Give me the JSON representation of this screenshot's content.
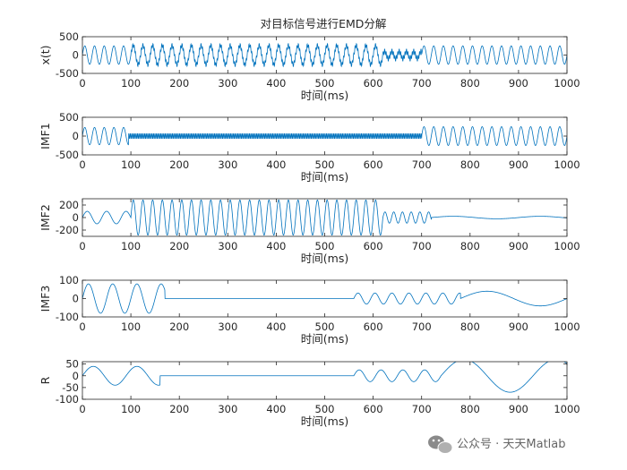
{
  "chart_data": [
    {
      "type": "line",
      "title": "对目标信号进行EMD分解",
      "xlabel": "时间(ms)",
      "ylabel": "x(t)",
      "xlim": [
        0,
        1000
      ],
      "ylim": [
        -500,
        500
      ],
      "xticks": [
        "0",
        "100",
        "200",
        "300",
        "400",
        "500",
        "600",
        "700",
        "800",
        "900",
        "1000"
      ],
      "yticks": [
        "500",
        "0",
        "-500"
      ],
      "series": [
        {
          "segments": [
            {
              "x_start": 0,
              "x_end": 100,
              "components": [
                {
                  "amplitude": 250,
                  "period_ms": 20
                }
              ]
            },
            {
              "x_start": 100,
              "x_end": 620,
              "components": [
                {
                  "amplitude": 260,
                  "period_ms": 20
                },
                {
                  "amplitude": 60,
                  "period_ms": 3
                }
              ]
            },
            {
              "x_start": 620,
              "x_end": 700,
              "components": [
                {
                  "amplitude": 100,
                  "period_ms": 15
                },
                {
                  "amplitude": 70,
                  "period_ms": 3
                }
              ]
            },
            {
              "x_start": 700,
              "x_end": 1000,
              "components": [
                {
                  "amplitude": 250,
                  "period_ms": 20
                }
              ]
            }
          ]
        }
      ]
    },
    {
      "type": "line",
      "title": "",
      "xlabel": "时间(ms)",
      "ylabel": "IMF1",
      "xlim": [
        0,
        1000
      ],
      "ylim": [
        -500,
        500
      ],
      "xticks": [
        "0",
        "100",
        "200",
        "300",
        "400",
        "500",
        "600",
        "700",
        "800",
        "900",
        "1000"
      ],
      "yticks": [
        "500",
        "0",
        "-500"
      ],
      "series": [
        {
          "segments": [
            {
              "x_start": 0,
              "x_end": 95,
              "components": [
                {
                  "amplitude": 230,
                  "period_ms": 20
                }
              ]
            },
            {
              "x_start": 95,
              "x_end": 700,
              "components": [
                {
                  "amplitude": 70,
                  "period_ms": 3
                }
              ]
            },
            {
              "x_start": 700,
              "x_end": 1000,
              "components": [
                {
                  "amplitude": 250,
                  "period_ms": 20
                }
              ]
            }
          ]
        }
      ]
    },
    {
      "type": "line",
      "title": "",
      "xlabel": "时间(ms)",
      "ylabel": "IMF2",
      "xlim": [
        0,
        1000
      ],
      "ylim": [
        -300,
        300
      ],
      "xticks": [
        "0",
        "100",
        "200",
        "300",
        "400",
        "500",
        "600",
        "700",
        "800",
        "900",
        "1000"
      ],
      "yticks": [
        "200",
        "0",
        "-200"
      ],
      "series": [
        {
          "segments": [
            {
              "x_start": 0,
              "x_end": 100,
              "components": [
                {
                  "amplitude": 100,
                  "period_ms": 40
                }
              ]
            },
            {
              "x_start": 100,
              "x_end": 620,
              "components": [
                {
                  "amplitude": 280,
                  "period_ms": 20
                }
              ]
            },
            {
              "x_start": 620,
              "x_end": 720,
              "components": [
                {
                  "amplitude": 90,
                  "period_ms": 18
                }
              ]
            },
            {
              "x_start": 720,
              "x_end": 1000,
              "components": [
                {
                  "amplitude": 20,
                  "period_ms": 180
                }
              ]
            }
          ]
        }
      ]
    },
    {
      "type": "line",
      "title": "",
      "xlabel": "时间(ms)",
      "ylabel": "IMF3",
      "xlim": [
        0,
        1000
      ],
      "ylim": [
        -100,
        100
      ],
      "xticks": [
        "0",
        "100",
        "200",
        "300",
        "400",
        "500",
        "600",
        "700",
        "800",
        "900",
        "1000"
      ],
      "yticks": [
        "100",
        "0",
        "-100"
      ],
      "series": [
        {
          "segments": [
            {
              "x_start": 0,
              "x_end": 170,
              "components": [
                {
                  "amplitude": 80,
                  "period_ms": 50
                }
              ]
            },
            {
              "x_start": 170,
              "x_end": 560,
              "components": [
                {
                  "amplitude": 0,
                  "period_ms": 50
                }
              ]
            },
            {
              "x_start": 560,
              "x_end": 780,
              "components": [
                {
                  "amplitude": 30,
                  "period_ms": 35
                }
              ]
            },
            {
              "x_start": 780,
              "x_end": 1000,
              "components": [
                {
                  "amplitude": 40,
                  "period_ms": 220
                }
              ]
            }
          ]
        }
      ]
    },
    {
      "type": "line",
      "title": "",
      "xlabel": "时间(ms)",
      "ylabel": "R",
      "xlim": [
        0,
        1000
      ],
      "ylim": [
        -100,
        60
      ],
      "xticks": [
        "0",
        "100",
        "200",
        "300",
        "400",
        "500",
        "600",
        "700",
        "800",
        "900",
        "1000"
      ],
      "yticks": [
        "50",
        "0",
        "-50",
        "-100"
      ],
      "series": [
        {
          "segments": [
            {
              "x_start": 0,
              "x_end": 160,
              "components": [
                {
                  "amplitude": 40,
                  "period_ms": 90
                }
              ]
            },
            {
              "x_start": 160,
              "x_end": 560,
              "components": [
                {
                  "amplitude": 0,
                  "period_ms": 90
                }
              ]
            },
            {
              "x_start": 560,
              "x_end": 740,
              "components": [
                {
                  "amplitude": 25,
                  "period_ms": 45
                }
              ]
            },
            {
              "x_start": 740,
              "x_end": 1000,
              "components": [
                {
                  "amplitude": 70,
                  "period_ms": 190
                }
              ]
            }
          ]
        }
      ]
    }
  ],
  "colors": {
    "line": "#0072BD",
    "axis": "#262626"
  },
  "watermark": {
    "icon": "wechat-icon",
    "text": "公众号 · 天天Matlab"
  }
}
